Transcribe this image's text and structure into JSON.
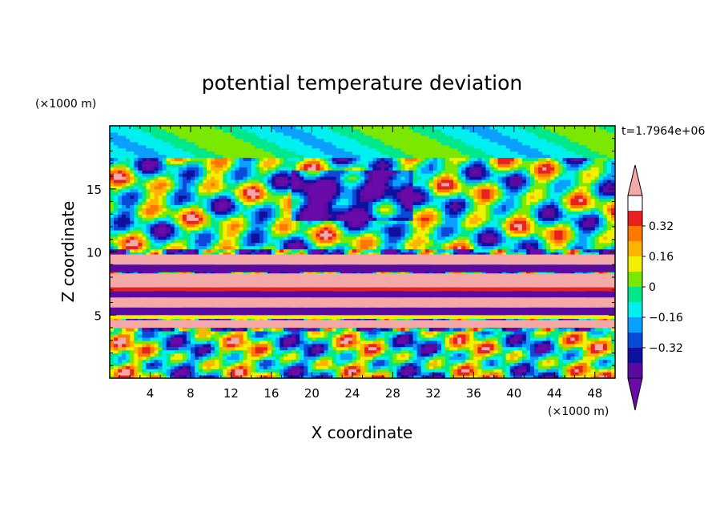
{
  "chart_data": {
    "type": "heatmap",
    "title": "potential temperature deviation",
    "xlabel": "X coordinate",
    "ylabel": "Z coordinate",
    "x_unit": "(×1000 m)",
    "y_unit": "(×1000 m)",
    "time_label": "t=1.7964e+06",
    "xlim": [
      0,
      50
    ],
    "ylim": [
      0,
      20
    ],
    "x_ticks": [
      4,
      8,
      12,
      16,
      20,
      24,
      28,
      32,
      36,
      40,
      44,
      48
    ],
    "y_ticks": [
      5,
      10,
      15
    ],
    "colorbar": {
      "levels": [
        -0.48,
        -0.4,
        -0.32,
        -0.24,
        -0.16,
        -0.08,
        0,
        0.08,
        0.16,
        0.24,
        0.32,
        0.4,
        0.48
      ],
      "labels": [
        -0.32,
        -0.16,
        0,
        0.16,
        0.32
      ],
      "colors": [
        "#6a0aa8",
        "#5a0a9e",
        "#1010a0",
        "#0a4ad8",
        "#0aa0ff",
        "#00f0f0",
        "#00e88c",
        "#7ae800",
        "#f0f000",
        "#ffb400",
        "#ff7800",
        "#e82020",
        "#f5a8a8"
      ]
    },
    "bands": [
      {
        "z": [
          4.0,
          4.6
        ],
        "level": 12
      },
      {
        "z": [
          4.7,
          5.0
        ],
        "level": 8
      },
      {
        "z": [
          5.0,
          5.6
        ],
        "level": 1
      },
      {
        "z": [
          5.6,
          6.4
        ],
        "level": 12
      },
      {
        "z": [
          6.4,
          6.9
        ],
        "level": 1
      },
      {
        "z": [
          6.9,
          7.2
        ],
        "level": 11
      },
      {
        "z": [
          7.2,
          8.3
        ],
        "level": 12
      },
      {
        "z": [
          8.4,
          9.0
        ],
        "level": 1
      },
      {
        "z": [
          9.0,
          9.8
        ],
        "level": 12
      }
    ]
  }
}
